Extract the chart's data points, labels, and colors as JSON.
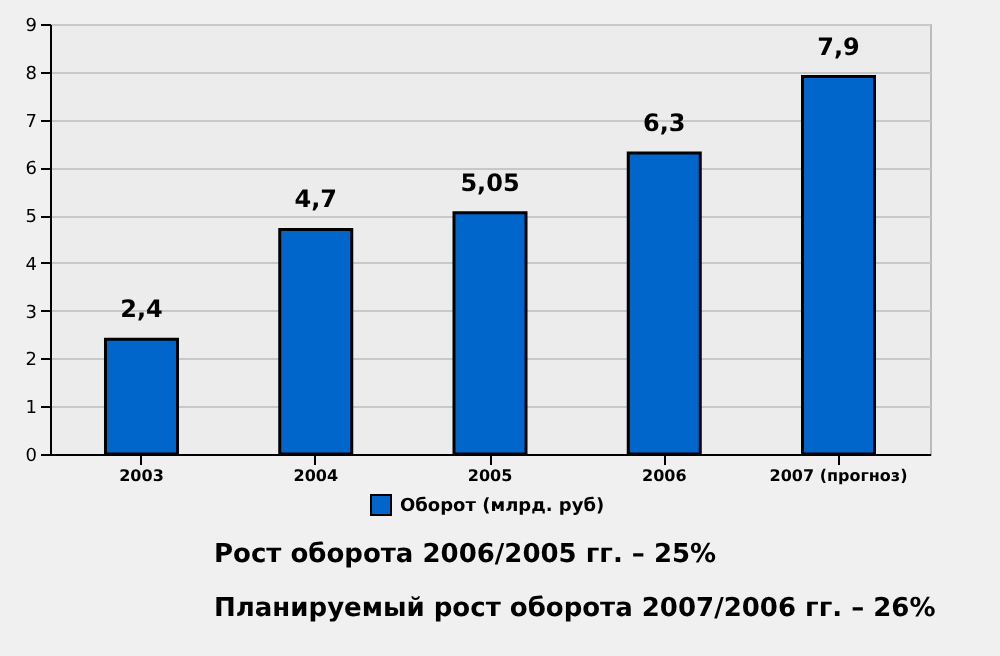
{
  "chart_data": {
    "type": "bar",
    "categories": [
      "2003",
      "2004",
      "2005",
      "2006",
      "2007 (прогноз)"
    ],
    "series": [
      {
        "name": "Оборот (млрд. руб)",
        "color": "#0066cc",
        "values": [
          2.4,
          4.7,
          5.05,
          6.3,
          7.9
        ],
        "value_labels": [
          "2,4",
          "4,7",
          "5,05",
          "6,3",
          "7,9"
        ]
      }
    ],
    "ylim": [
      0,
      9
    ],
    "yticks": [
      0,
      1,
      2,
      3,
      4,
      5,
      6,
      7,
      8,
      9
    ],
    "grid": "y",
    "legend": "bottom",
    "annotations": [
      "Рост оборота 2006/2005 гг. – 25%",
      "Планируемый рост оборота 2007/2006 гг. – 26%"
    ]
  }
}
